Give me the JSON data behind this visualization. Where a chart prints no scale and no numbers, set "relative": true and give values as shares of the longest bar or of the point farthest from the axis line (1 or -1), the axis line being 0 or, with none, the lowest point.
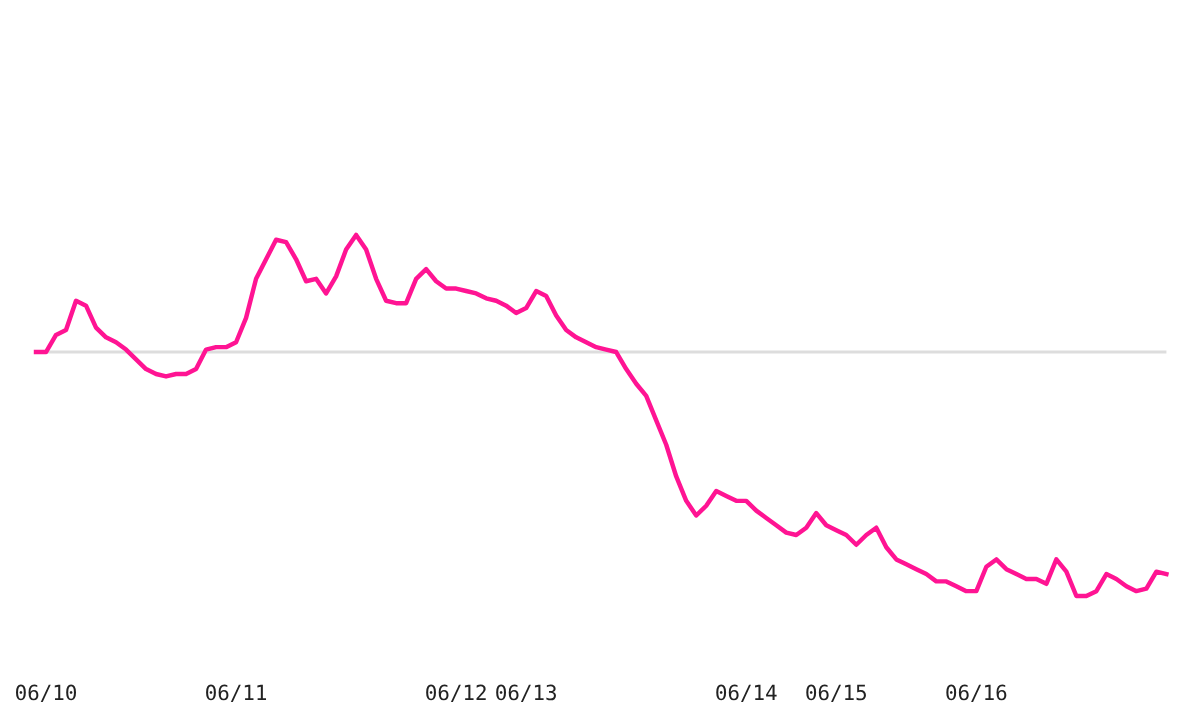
{
  "chart_data": {
    "type": "line",
    "relative": true,
    "categories": [
      null,
      "06/10",
      null,
      null,
      null,
      null,
      null,
      null,
      null,
      null,
      null,
      null,
      null,
      null,
      null,
      null,
      null,
      null,
      null,
      null,
      "06/11",
      null,
      null,
      null,
      null,
      null,
      null,
      null,
      null,
      null,
      null,
      null,
      null,
      null,
      null,
      null,
      null,
      null,
      null,
      null,
      null,
      null,
      "06/12",
      null,
      null,
      null,
      null,
      null,
      null,
      "06/13",
      null,
      null,
      null,
      null,
      null,
      null,
      null,
      null,
      null,
      null,
      null,
      null,
      null,
      null,
      null,
      null,
      null,
      null,
      null,
      null,
      null,
      "06/14",
      null,
      null,
      null,
      null,
      null,
      null,
      null,
      null,
      "06/15",
      null,
      null,
      null,
      null,
      null,
      null,
      null,
      null,
      null,
      null,
      null,
      null,
      null,
      "06/16",
      null,
      null,
      null,
      null,
      null,
      null,
      null,
      null,
      null,
      null,
      null,
      null,
      null,
      null,
      null,
      null,
      null,
      null,
      null
    ],
    "series": [
      {
        "color": "#ff1493",
        "values": [
          0,
          0,
          0.07,
          0.09,
          0.21,
          0.19,
          0.1,
          0.06,
          0.04,
          0.01,
          -0.03,
          -0.07,
          -0.09,
          -0.1,
          -0.09,
          -0.09,
          -0.07,
          0.01,
          0.02,
          0.02,
          0.04,
          0.14,
          0.3,
          0.38,
          0.46,
          0.45,
          0.38,
          0.29,
          0.3,
          0.24,
          0.31,
          0.42,
          0.48,
          0.42,
          0.3,
          0.21,
          0.2,
          0.2,
          0.3,
          0.34,
          0.29,
          0.26,
          0.26,
          0.25,
          0.24,
          0.22,
          0.21,
          0.19,
          0.16,
          0.18,
          0.25,
          0.23,
          0.15,
          0.09,
          0.06,
          0.04,
          0.02,
          0.01,
          0,
          -0.07,
          -0.13,
          -0.18,
          -0.28,
          -0.38,
          -0.51,
          -0.61,
          -0.67,
          -0.63,
          -0.57,
          -0.59,
          -0.61,
          -0.61,
          -0.65,
          -0.68,
          -0.71,
          -0.74,
          -0.75,
          -0.72,
          -0.66,
          -0.71,
          -0.73,
          -0.75,
          -0.79,
          -0.75,
          -0.72,
          -0.8,
          -0.85,
          -0.87,
          -0.89,
          -0.91,
          -0.94,
          -0.94,
          -0.96,
          -0.98,
          -0.98,
          -0.88,
          -0.85,
          -0.89,
          -0.91,
          -0.93,
          -0.93,
          -0.95,
          -0.85,
          -0.9,
          -1,
          -1,
          -0.98,
          -0.91,
          -0.93,
          -0.96,
          -0.98,
          -0.97,
          -0.9,
          -0.91
        ]
      }
    ],
    "ref_lines": [
      {
        "axis": "y",
        "value": 0,
        "color": "#dddddd"
      }
    ],
    "grid": false,
    "marker": "none",
    "line_style": "solid"
  }
}
